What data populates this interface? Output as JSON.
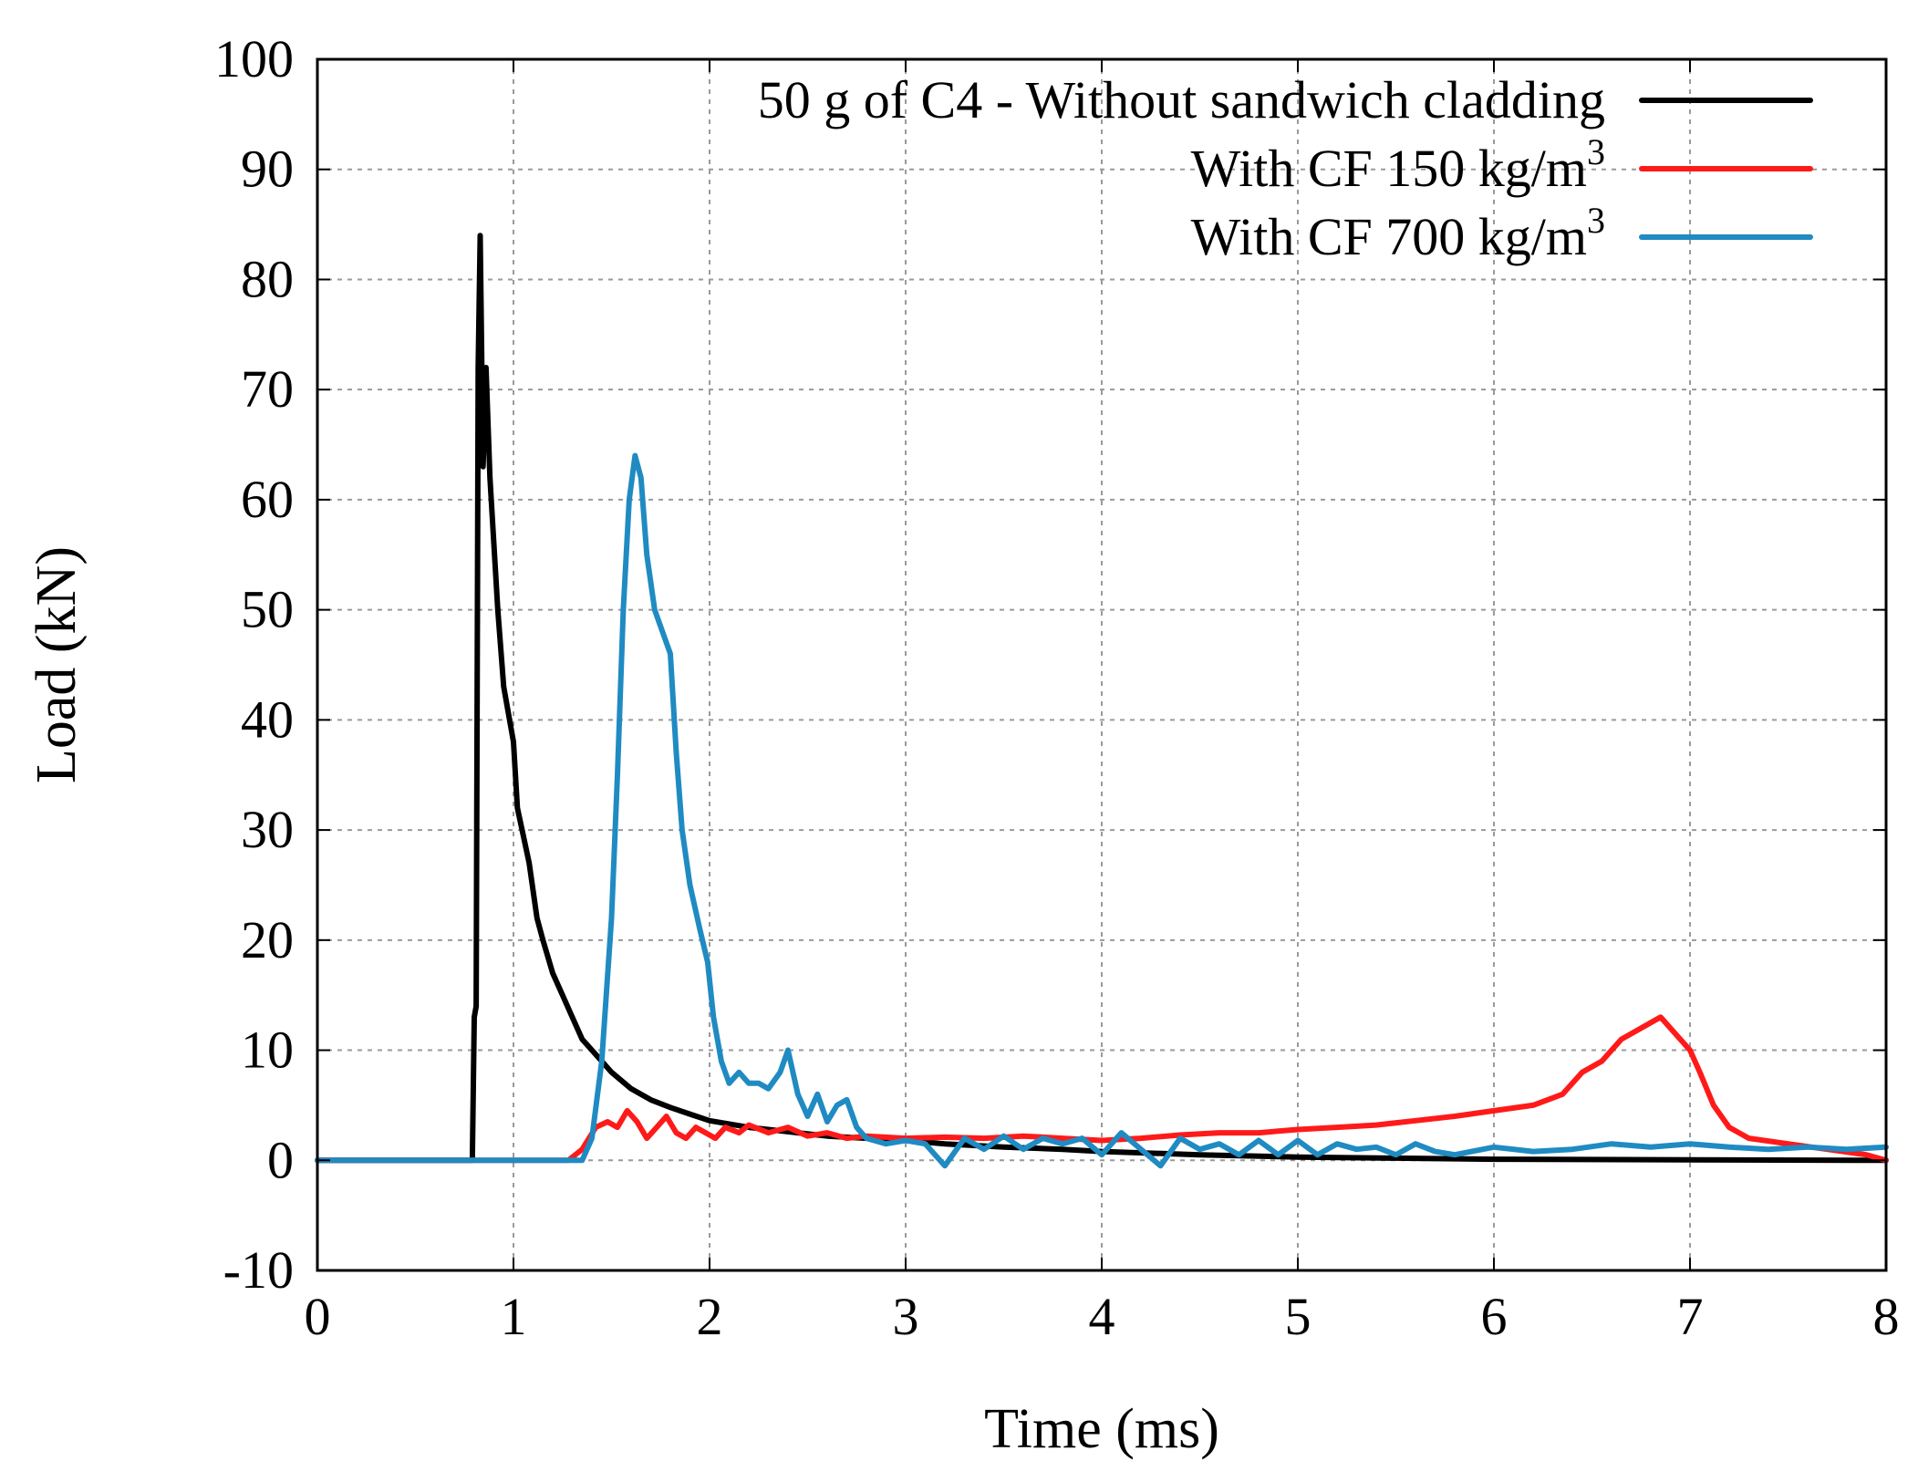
{
  "chart_data": {
    "type": "line",
    "title": "",
    "xlabel": "Time (ms)",
    "ylabel": "Load (kN)",
    "xlim": [
      0,
      8
    ],
    "ylim": [
      -10,
      100
    ],
    "xticks": [
      0,
      1,
      2,
      3,
      4,
      5,
      6,
      7,
      8
    ],
    "yticks": [
      -10,
      0,
      10,
      20,
      30,
      40,
      50,
      60,
      70,
      80,
      90,
      100
    ],
    "grid": true,
    "legend_position": "top-right",
    "series": [
      {
        "name": "50 g of C4 - Without sandwich cladding",
        "color": "#000000",
        "points": [
          [
            0,
            0
          ],
          [
            0.79,
            0
          ],
          [
            0.8,
            13
          ],
          [
            0.81,
            14
          ],
          [
            0.82,
            72
          ],
          [
            0.83,
            84
          ],
          [
            0.845,
            63
          ],
          [
            0.86,
            72
          ],
          [
            0.88,
            62
          ],
          [
            0.92,
            50
          ],
          [
            0.95,
            43
          ],
          [
            1.0,
            38
          ],
          [
            1.02,
            32
          ],
          [
            1.08,
            27
          ],
          [
            1.12,
            22
          ],
          [
            1.15,
            20
          ],
          [
            1.2,
            17
          ],
          [
            1.25,
            15
          ],
          [
            1.3,
            13
          ],
          [
            1.35,
            11
          ],
          [
            1.4,
            10
          ],
          [
            1.45,
            9
          ],
          [
            1.5,
            8
          ],
          [
            1.6,
            6.5
          ],
          [
            1.7,
            5.5
          ],
          [
            1.8,
            4.8
          ],
          [
            1.9,
            4.2
          ],
          [
            2.0,
            3.6
          ],
          [
            2.2,
            3.0
          ],
          [
            2.4,
            2.6
          ],
          [
            2.6,
            2.2
          ],
          [
            2.8,
            2.0
          ],
          [
            3.0,
            1.8
          ],
          [
            3.2,
            1.5
          ],
          [
            3.5,
            1.2
          ],
          [
            3.8,
            1.0
          ],
          [
            4.0,
            0.8
          ],
          [
            4.5,
            0.5
          ],
          [
            5.0,
            0.3
          ],
          [
            5.5,
            0.2
          ],
          [
            6.0,
            0.1
          ],
          [
            7.0,
            0.05
          ],
          [
            8.0,
            0
          ]
        ]
      },
      {
        "name": "With CF 150 kg/m",
        "name_superscript": "3",
        "color": "#ff1a1a",
        "points": [
          [
            0,
            0
          ],
          [
            1.28,
            0
          ],
          [
            1.35,
            1
          ],
          [
            1.42,
            3
          ],
          [
            1.48,
            3.5
          ],
          [
            1.53,
            3
          ],
          [
            1.58,
            4.5
          ],
          [
            1.63,
            3.5
          ],
          [
            1.68,
            2
          ],
          [
            1.73,
            3
          ],
          [
            1.78,
            4
          ],
          [
            1.83,
            2.5
          ],
          [
            1.88,
            2
          ],
          [
            1.93,
            3
          ],
          [
            1.98,
            2.5
          ],
          [
            2.03,
            2
          ],
          [
            2.08,
            3
          ],
          [
            2.15,
            2.5
          ],
          [
            2.2,
            3.2
          ],
          [
            2.3,
            2.5
          ],
          [
            2.4,
            3
          ],
          [
            2.5,
            2.2
          ],
          [
            2.6,
            2.5
          ],
          [
            2.7,
            2
          ],
          [
            2.8,
            2.2
          ],
          [
            3.0,
            2
          ],
          [
            3.2,
            2.1
          ],
          [
            3.4,
            2
          ],
          [
            3.6,
            2.2
          ],
          [
            3.8,
            2
          ],
          [
            4.0,
            1.8
          ],
          [
            4.2,
            2
          ],
          [
            4.4,
            2.3
          ],
          [
            4.6,
            2.5
          ],
          [
            4.8,
            2.5
          ],
          [
            5.0,
            2.8
          ],
          [
            5.2,
            3
          ],
          [
            5.4,
            3.2
          ],
          [
            5.6,
            3.6
          ],
          [
            5.8,
            4
          ],
          [
            6.0,
            4.5
          ],
          [
            6.2,
            5
          ],
          [
            6.35,
            6
          ],
          [
            6.45,
            8
          ],
          [
            6.55,
            9
          ],
          [
            6.65,
            11
          ],
          [
            6.75,
            12
          ],
          [
            6.85,
            13
          ],
          [
            6.95,
            11
          ],
          [
            7.0,
            10
          ],
          [
            7.05,
            8
          ],
          [
            7.12,
            5
          ],
          [
            7.2,
            3
          ],
          [
            7.3,
            2
          ],
          [
            7.5,
            1.5
          ],
          [
            7.7,
            1
          ],
          [
            7.9,
            0.5
          ],
          [
            8.0,
            0
          ]
        ]
      },
      {
        "name": "With CF 700 kg/m",
        "name_superscript": "3",
        "color": "#1f8bc2",
        "points": [
          [
            0,
            0
          ],
          [
            1.35,
            0
          ],
          [
            1.4,
            2
          ],
          [
            1.45,
            9
          ],
          [
            1.5,
            22
          ],
          [
            1.53,
            35
          ],
          [
            1.56,
            50
          ],
          [
            1.59,
            60
          ],
          [
            1.62,
            64
          ],
          [
            1.65,
            62
          ],
          [
            1.68,
            55
          ],
          [
            1.72,
            50
          ],
          [
            1.76,
            48
          ],
          [
            1.8,
            46
          ],
          [
            1.83,
            37
          ],
          [
            1.86,
            30
          ],
          [
            1.9,
            25
          ],
          [
            1.95,
            21
          ],
          [
            1.99,
            18
          ],
          [
            2.02,
            13
          ],
          [
            2.06,
            9
          ],
          [
            2.1,
            7
          ],
          [
            2.15,
            8
          ],
          [
            2.2,
            7
          ],
          [
            2.25,
            7
          ],
          [
            2.3,
            6.5
          ],
          [
            2.36,
            8
          ],
          [
            2.4,
            10
          ],
          [
            2.45,
            6
          ],
          [
            2.5,
            4
          ],
          [
            2.55,
            6
          ],
          [
            2.6,
            3.5
          ],
          [
            2.65,
            5
          ],
          [
            2.7,
            5.5
          ],
          [
            2.75,
            3
          ],
          [
            2.8,
            2
          ],
          [
            2.9,
            1.5
          ],
          [
            3.0,
            1.8
          ],
          [
            3.1,
            1.5
          ],
          [
            3.2,
            -0.5
          ],
          [
            3.3,
            2
          ],
          [
            3.4,
            1
          ],
          [
            3.5,
            2.2
          ],
          [
            3.6,
            1
          ],
          [
            3.7,
            2
          ],
          [
            3.8,
            1.5
          ],
          [
            3.9,
            2
          ],
          [
            4.0,
            0.5
          ],
          [
            4.1,
            2.5
          ],
          [
            4.2,
            1
          ],
          [
            4.3,
            -0.5
          ],
          [
            4.4,
            2
          ],
          [
            4.5,
            1
          ],
          [
            4.6,
            1.5
          ],
          [
            4.7,
            0.5
          ],
          [
            4.8,
            1.8
          ],
          [
            4.9,
            0.5
          ],
          [
            5.0,
            1.8
          ],
          [
            5.1,
            0.5
          ],
          [
            5.2,
            1.5
          ],
          [
            5.3,
            1
          ],
          [
            5.4,
            1.2
          ],
          [
            5.5,
            0.5
          ],
          [
            5.6,
            1.5
          ],
          [
            5.7,
            0.8
          ],
          [
            5.8,
            0.5
          ],
          [
            6.0,
            1.2
          ],
          [
            6.2,
            0.8
          ],
          [
            6.4,
            1
          ],
          [
            6.6,
            1.5
          ],
          [
            6.8,
            1.2
          ],
          [
            7.0,
            1.5
          ],
          [
            7.2,
            1.2
          ],
          [
            7.4,
            1
          ],
          [
            7.6,
            1.2
          ],
          [
            7.8,
            1
          ],
          [
            8.0,
            1.2
          ]
        ]
      }
    ]
  }
}
